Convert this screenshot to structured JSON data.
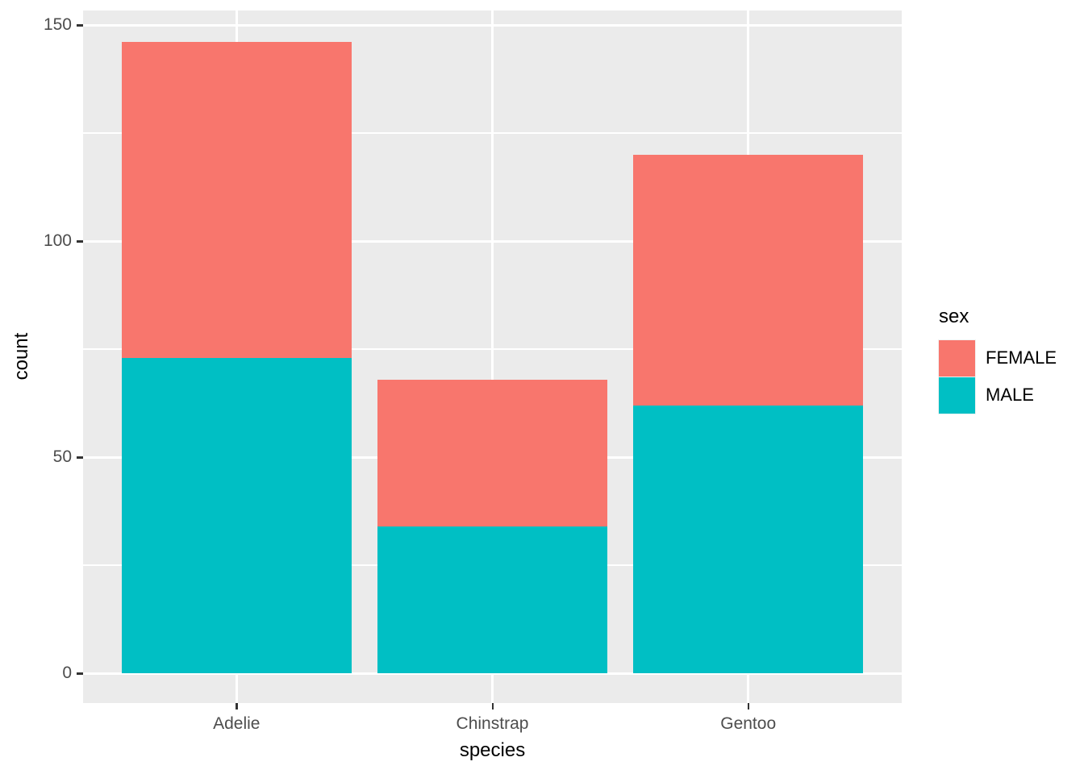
{
  "chart_data": {
    "type": "bar",
    "stacked": true,
    "categories": [
      "Adelie",
      "Chinstrap",
      "Gentoo"
    ],
    "series": [
      {
        "name": "MALE",
        "color": "#00BFC4",
        "values": [
          73,
          34,
          62
        ]
      },
      {
        "name": "FEMALE",
        "color": "#F8766D",
        "values": [
          73,
          34,
          58
        ]
      }
    ],
    "totals": [
      146,
      68,
      120
    ],
    "xlabel": "species",
    "ylabel": "count",
    "ylim": [
      0,
      150
    ],
    "yticks": [
      0,
      50,
      100,
      150
    ],
    "yminor": [
      25,
      75,
      125
    ],
    "grid": true,
    "legend_title": "sex",
    "legend_position": "right",
    "legend_entries": [
      {
        "label": "FEMALE",
        "color": "#F8766D"
      },
      {
        "label": "MALE",
        "color": "#00BFC4"
      }
    ],
    "colors": {
      "panel_bg": "#EBEBEB",
      "gridline": "#FFFFFF",
      "tick_mark": "#333333",
      "tick_label": "#4D4D4D",
      "axis_title": "#000000",
      "female": "#F8766D",
      "male": "#00BFC4"
    }
  }
}
